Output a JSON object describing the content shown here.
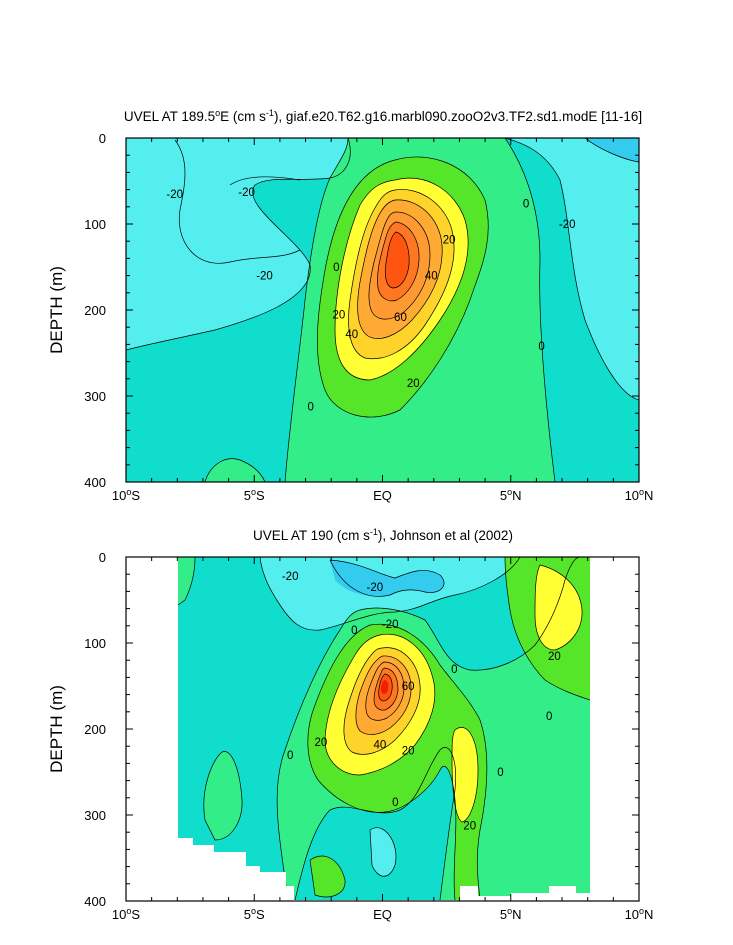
{
  "chart_data": [
    {
      "type": "contour",
      "title": "UVEL AT 189.5°E (cm s⁻¹), giaf.e20.T62.g16.marbl090.zooO2v3.TF2.sd1.modE [11-16]",
      "title_parts": {
        "pre": "UVEL AT 189.5",
        "deg": "o",
        "mid1": "E (cm s",
        "exp": "-1",
        "post": "), giaf.e20.T62.g16.marbl090.zooO2v3.TF2.sd1.modE [11-16]"
      },
      "xlabel": "",
      "ylabel": "DEPTH (m)",
      "xlim": [
        -10,
        10
      ],
      "ylim": [
        400,
        0
      ],
      "x_ticks": [
        {
          "value": -10,
          "num": "10",
          "hemi": "S"
        },
        {
          "value": -5,
          "num": "5",
          "hemi": "S"
        },
        {
          "value": 0,
          "num": "EQ",
          "hemi": ""
        },
        {
          "value": 5,
          "num": "5",
          "hemi": "N"
        },
        {
          "value": 10,
          "num": "10",
          "hemi": "N"
        }
      ],
      "y_ticks": [
        0,
        100,
        200,
        300,
        400
      ],
      "contour_interval": 10,
      "max_value_approx": 70,
      "contour_labels": [
        {
          "text": "-20",
          "lat": -8.1,
          "depth": 65
        },
        {
          "text": "-20",
          "lat": -5.3,
          "depth": 63
        },
        {
          "text": "-20",
          "lat": -4.6,
          "depth": 160
        },
        {
          "text": "-20",
          "lat": 7.2,
          "depth": 100
        },
        {
          "text": "0",
          "lat": 5.6,
          "depth": 76
        },
        {
          "text": "0",
          "lat": 6.2,
          "depth": 242
        },
        {
          "text": "0",
          "lat": -1.8,
          "depth": 150
        },
        {
          "text": "0",
          "lat": -2.8,
          "depth": 312
        },
        {
          "text": "20",
          "lat": -1.7,
          "depth": 205
        },
        {
          "text": "20",
          "lat": 2.6,
          "depth": 118
        },
        {
          "text": "20",
          "lat": 1.2,
          "depth": 285
        },
        {
          "text": "40",
          "lat": 1.9,
          "depth": 160
        },
        {
          "text": "40",
          "lat": -1.2,
          "depth": 228
        },
        {
          "text": "60",
          "lat": 0.7,
          "depth": 208
        }
      ]
    },
    {
      "type": "contour",
      "title": "UVEL AT 190 (cm s⁻¹), Johnson et al (2002)",
      "title_parts": {
        "pre": "UVEL AT 190 (cm s",
        "exp": "-1",
        "post": "), Johnson et al (2002)"
      },
      "xlabel": "",
      "ylabel": "DEPTH (m)",
      "xlim": [
        -10,
        10
      ],
      "ylim": [
        400,
        0
      ],
      "x_ticks": [
        {
          "value": -10,
          "num": "10",
          "hemi": "S"
        },
        {
          "value": -5,
          "num": "5",
          "hemi": "S"
        },
        {
          "value": 0,
          "num": "EQ",
          "hemi": ""
        },
        {
          "value": 5,
          "num": "5",
          "hemi": "N"
        },
        {
          "value": 10,
          "num": "10",
          "hemi": "N"
        }
      ],
      "y_ticks": [
        0,
        100,
        200,
        300,
        400
      ],
      "data_lat_range": [
        -8,
        8
      ],
      "contour_interval": 10,
      "max_value_approx": 80,
      "contour_labels": [
        {
          "text": "-20",
          "lat": -3.6,
          "depth": 22
        },
        {
          "text": "-20",
          "lat": -0.3,
          "depth": 35
        },
        {
          "text": "-20",
          "lat": 0.3,
          "depth": 78
        },
        {
          "text": "0",
          "lat": -1.1,
          "depth": 85
        },
        {
          "text": "0",
          "lat": 2.8,
          "depth": 130
        },
        {
          "text": "0",
          "lat": 6.5,
          "depth": 185
        },
        {
          "text": "0",
          "lat": -3.6,
          "depth": 230
        },
        {
          "text": "0",
          "lat": 4.6,
          "depth": 250
        },
        {
          "text": "0",
          "lat": 0.5,
          "depth": 285
        },
        {
          "text": "20",
          "lat": -2.4,
          "depth": 215
        },
        {
          "text": "20",
          "lat": 1.0,
          "depth": 225
        },
        {
          "text": "20",
          "lat": 6.7,
          "depth": 115
        },
        {
          "text": "20",
          "lat": 3.4,
          "depth": 312
        },
        {
          "text": "40",
          "lat": -0.1,
          "depth": 218
        },
        {
          "text": "60",
          "lat": 1.0,
          "depth": 150
        }
      ]
    }
  ],
  "colors": {
    "minus30": "#33ccee",
    "minus20": "#55eeee",
    "minus10": "#11ddcc",
    "zero": "#33ee88",
    "plus10": "#55e62a",
    "plus20": "#ffff33",
    "plus30": "#ffd42a",
    "plus40": "#ffaa33",
    "plus50": "#ff9933",
    "plus60": "#ff7722",
    "plus70": "#ff5511",
    "plus80": "#ee2200"
  }
}
